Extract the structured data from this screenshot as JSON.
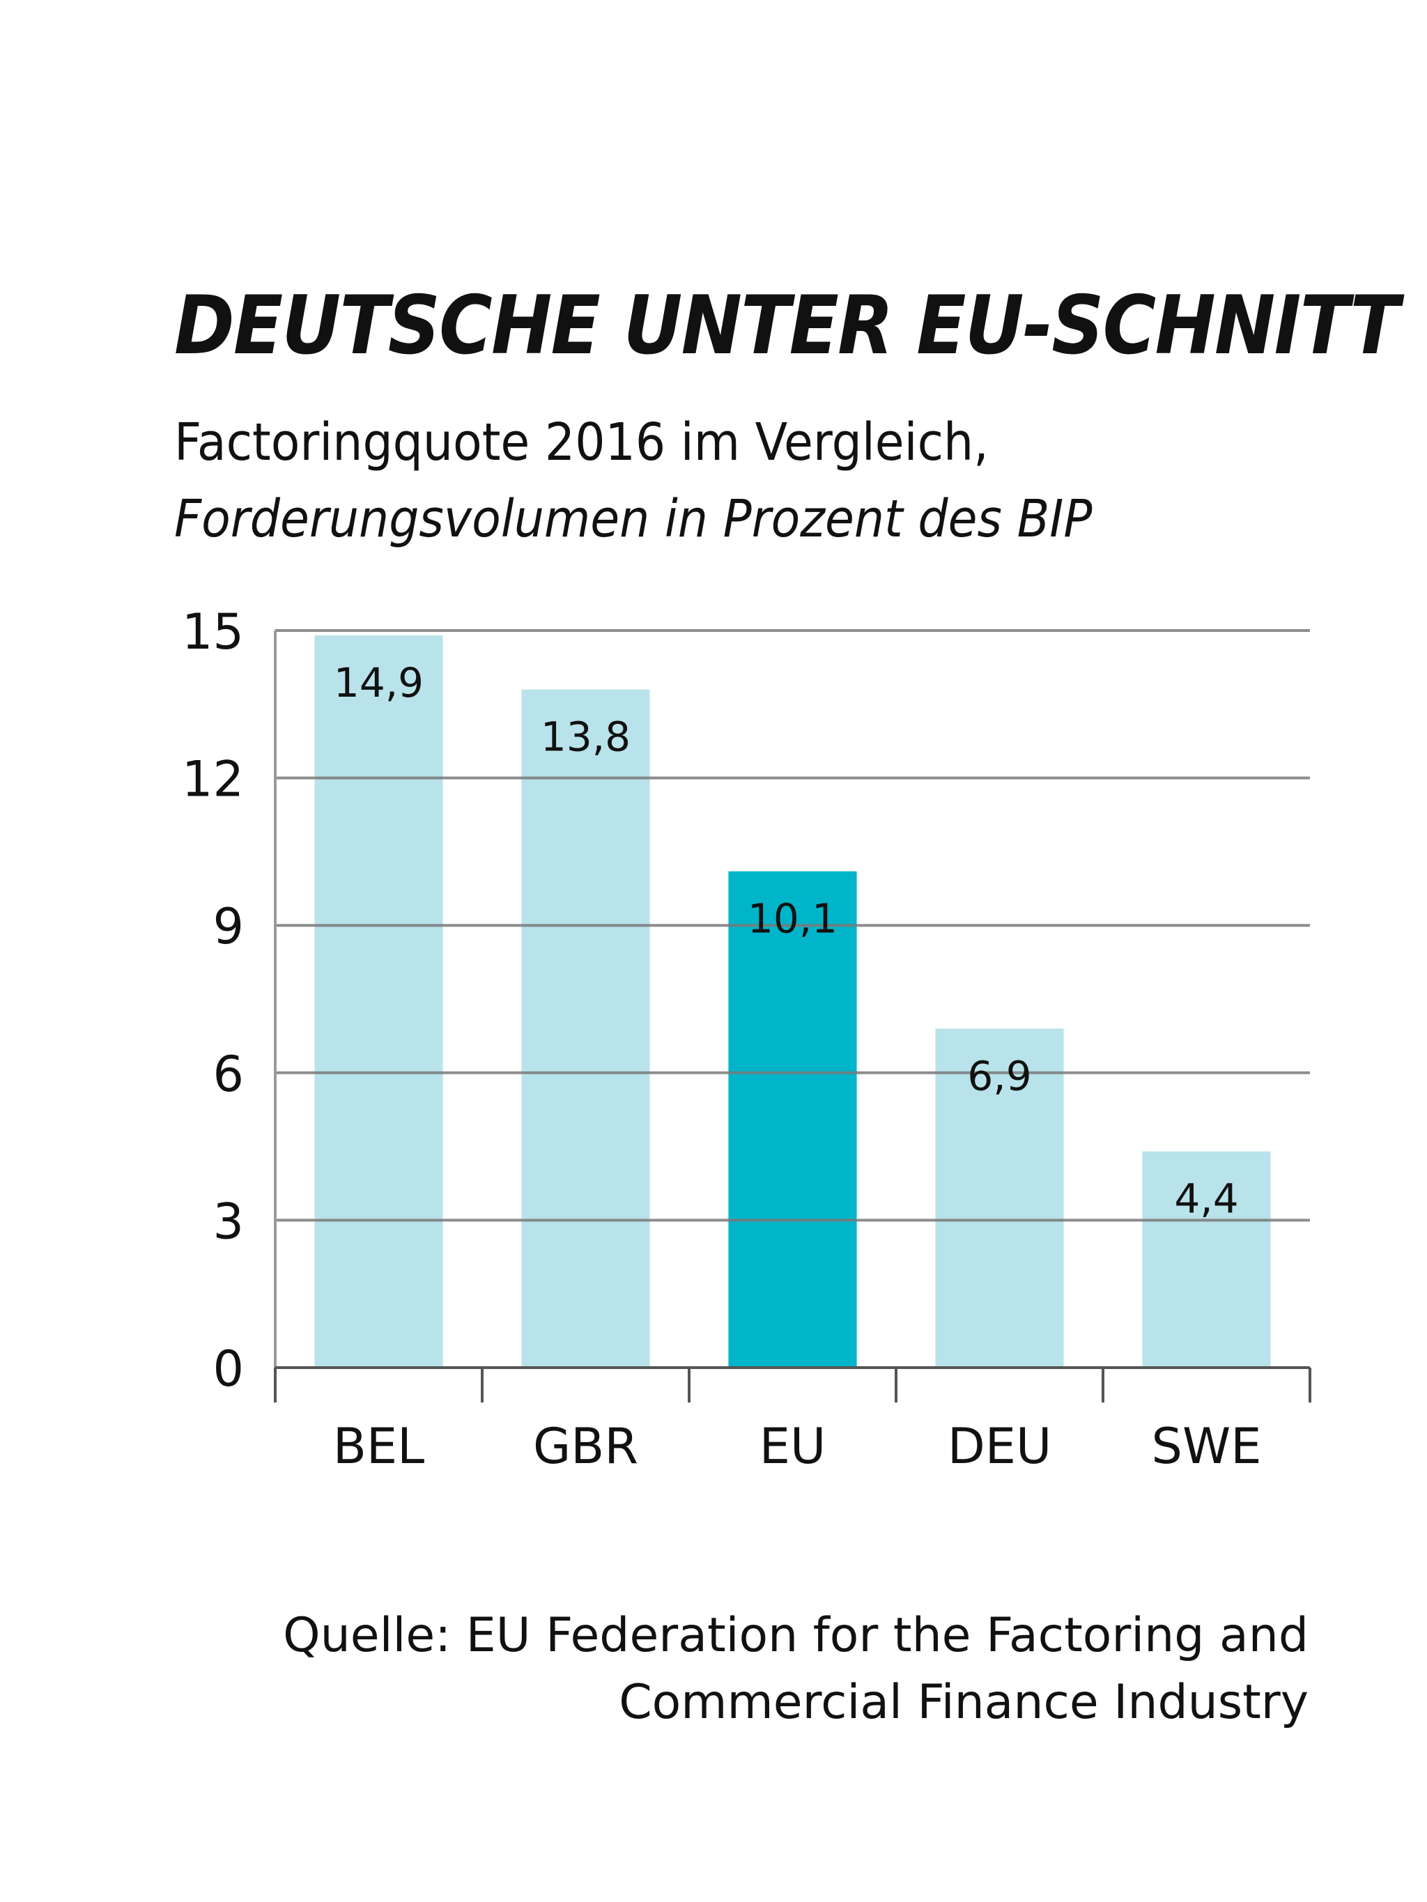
{
  "chart_data": {
    "type": "bar",
    "title": "DEUTSCHE UNTER EU-SCHNITT",
    "subtitle_line1": "Factoringquote 2016 im Vergleich,",
    "subtitle_line2": "Forderungsvolumen in Prozent des BIP",
    "categories": [
      "BEL",
      "GBR",
      "EU",
      "DEU",
      "SWE"
    ],
    "values": [
      14.9,
      13.8,
      10.1,
      6.9,
      4.4
    ],
    "value_labels": [
      "14,9",
      "13,8",
      "10,1",
      "6,9",
      "4,4"
    ],
    "highlight_category": "EU",
    "ylim": [
      0,
      15
    ],
    "yticks": [
      0,
      3,
      6,
      9,
      12,
      15
    ],
    "ytick_labels": [
      "0",
      "3",
      "6",
      "9",
      "12",
      "15"
    ],
    "xlabel": "",
    "ylabel": "",
    "grid": true,
    "legend": "none",
    "colors": {
      "bar": "#b9e3ea",
      "highlight": "#00b5c9",
      "grid": "#7a7a7a",
      "axis": "#555555",
      "text": "#111111"
    }
  },
  "source": {
    "line1": "Quelle: EU Federation for the Factoring and",
    "line2": "Commercial Finance Industry"
  }
}
